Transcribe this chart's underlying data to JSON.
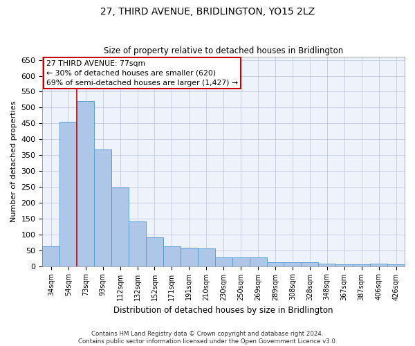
{
  "title": "27, THIRD AVENUE, BRIDLINGTON, YO15 2LZ",
  "subtitle": "Size of property relative to detached houses in Bridlington",
  "xlabel": "Distribution of detached houses by size in Bridlington",
  "ylabel": "Number of detached properties",
  "categories": [
    "34sqm",
    "54sqm",
    "73sqm",
    "93sqm",
    "112sqm",
    "132sqm",
    "152sqm",
    "171sqm",
    "191sqm",
    "210sqm",
    "230sqm",
    "250sqm",
    "269sqm",
    "289sqm",
    "308sqm",
    "328sqm",
    "348sqm",
    "367sqm",
    "387sqm",
    "406sqm",
    "426sqm"
  ],
  "values": [
    62,
    455,
    520,
    368,
    248,
    140,
    91,
    63,
    57,
    55,
    27,
    27,
    27,
    12,
    12,
    12,
    8,
    5,
    5,
    8,
    5
  ],
  "bar_color": "#aec6e8",
  "bar_edge_color": "#5a9fd4",
  "ylim": [
    0,
    660
  ],
  "yticks": [
    0,
    50,
    100,
    150,
    200,
    250,
    300,
    350,
    400,
    450,
    500,
    550,
    600,
    650
  ],
  "vline_x": 1.5,
  "vline_color": "#cc0000",
  "annotation_line1": "27 THIRD AVENUE: 77sqm",
  "annotation_line2": "← 30% of detached houses are smaller (620)",
  "annotation_line3": "69% of semi-detached houses are larger (1,427) →",
  "annotation_box_color": "#ffffff",
  "annotation_box_edge": "#cc0000",
  "footer_line1": "Contains HM Land Registry data © Crown copyright and database right 2024.",
  "footer_line2": "Contains public sector information licensed under the Open Government Licence v3.0.",
  "background_color": "#eef2fa",
  "grid_color": "#c8d0e8"
}
